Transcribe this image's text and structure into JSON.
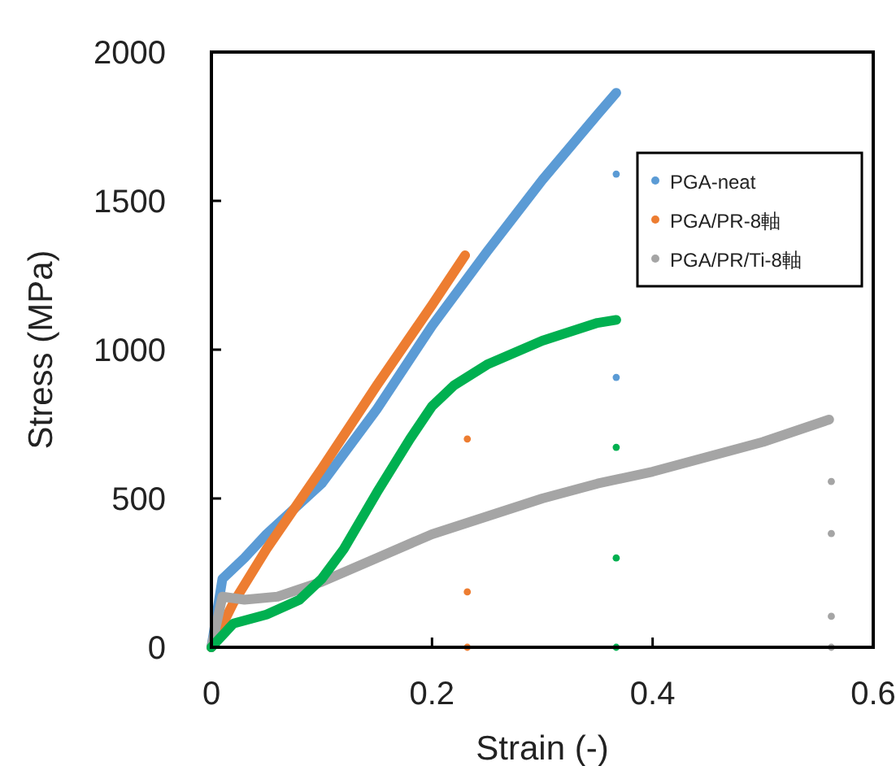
{
  "chart_data": {
    "type": "line",
    "xlabel": "Strain (-)",
    "ylabel": "Stress (MPa)",
    "xlim": [
      0,
      0.6
    ],
    "ylim": [
      0,
      2000
    ],
    "xticks": [
      0,
      0.2,
      0.4,
      0.6
    ],
    "yticks": [
      0,
      500,
      1000,
      1500,
      2000
    ],
    "legend": "top right",
    "series": [
      {
        "name": "PGA-neat",
        "color": "#5b9bd5",
        "marker": "none",
        "x": [
          0,
          0.01,
          0.03,
          0.05,
          0.1,
          0.15,
          0.2,
          0.25,
          0.3,
          0.35,
          0.367
        ],
        "values": [
          0,
          230,
          300,
          380,
          550,
          800,
          1080,
          1330,
          1570,
          1790,
          1863
        ]
      },
      {
        "name": "PGA/PR-8軸",
        "color": "#ed7d31",
        "marker": "none",
        "x": [
          0,
          0.02,
          0.05,
          0.1,
          0.15,
          0.2,
          0.23
        ],
        "values": [
          0,
          150,
          330,
          600,
          880,
          1150,
          1317
        ]
      },
      {
        "name": "PGA/PR/Ti-8軸",
        "color": "#a5a5a5",
        "marker": "none",
        "x": [
          0,
          0.01,
          0.03,
          0.06,
          0.1,
          0.15,
          0.2,
          0.25,
          0.3,
          0.35,
          0.4,
          0.45,
          0.5,
          0.56
        ],
        "values": [
          0,
          170,
          160,
          170,
          220,
          300,
          380,
          440,
          500,
          550,
          590,
          640,
          690,
          765
        ]
      },
      {
        "color": "#00b050",
        "marker": "none",
        "x": [
          0,
          0.02,
          0.05,
          0.08,
          0.1,
          0.12,
          0.15,
          0.18,
          0.2,
          0.22,
          0.25,
          0.3,
          0.35,
          0.367
        ],
        "values": [
          0,
          80,
          110,
          160,
          230,
          330,
          520,
          700,
          810,
          880,
          950,
          1030,
          1090,
          1100
        ]
      },
      {
        "type": "scatter",
        "marker": "circle",
        "color": "#5b9bd5",
        "x": [
          0.367,
          0.367
        ],
        "values": [
          1590,
          907
        ]
      },
      {
        "type": "scatter",
        "marker": "circle",
        "color": "#ed7d31",
        "x": [
          0.232,
          0.232,
          0.232
        ],
        "values": [
          700,
          186,
          0
        ]
      },
      {
        "type": "scatter",
        "marker": "circle",
        "color": "#a5a5a5",
        "x": [
          0.562,
          0.562,
          0.562,
          0.562
        ],
        "values": [
          557,
          382,
          104,
          0
        ]
      },
      {
        "type": "scatter",
        "marker": "circle",
        "color": "#00b050",
        "x": [
          0.367,
          0.367,
          0.367
        ],
        "values": [
          672,
          300,
          0
        ]
      }
    ]
  }
}
